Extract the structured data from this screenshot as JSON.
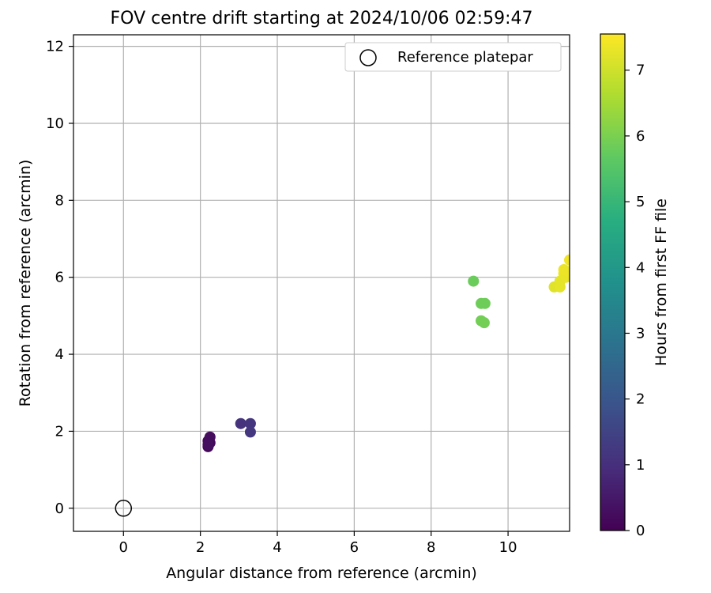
{
  "chart_data": {
    "type": "scatter",
    "title": "FOV centre drift starting at 2024/10/06 02:59:47",
    "xlabel": "Angular distance from reference (arcmin)",
    "ylabel": "Rotation from reference (arcmin)",
    "xlim": [
      -1.3,
      11.6
    ],
    "ylim": [
      -0.6,
      12.3
    ],
    "xticks": [
      0,
      2,
      4,
      6,
      8,
      10
    ],
    "yticks": [
      0,
      2,
      4,
      6,
      8,
      10,
      12
    ],
    "grid": true,
    "legend": {
      "position": "top-right",
      "entries": [
        {
          "label": "Reference platepar",
          "marker": "open-circle"
        }
      ]
    },
    "reference_point": {
      "x": 0,
      "y": 0
    },
    "colorbar": {
      "label": "Hours from first FF file",
      "colormap": "viridis",
      "range": [
        0,
        7.55
      ],
      "ticks": [
        0,
        1,
        2,
        3,
        4,
        5,
        6,
        7
      ]
    },
    "points": [
      {
        "x": 2.2,
        "y": 1.6,
        "hours": 0.1
      },
      {
        "x": 2.25,
        "y": 1.7,
        "hours": 0.15
      },
      {
        "x": 2.2,
        "y": 1.75,
        "hours": 0.2
      },
      {
        "x": 2.25,
        "y": 1.85,
        "hours": 0.25
      },
      {
        "x": 2.2,
        "y": 1.65,
        "hours": 0.3
      },
      {
        "x": 3.05,
        "y": 2.2,
        "hours": 1.1
      },
      {
        "x": 3.3,
        "y": 2.2,
        "hours": 1.15
      },
      {
        "x": 3.3,
        "y": 1.98,
        "hours": 1.2
      },
      {
        "x": 9.1,
        "y": 5.9,
        "hours": 5.8
      },
      {
        "x": 9.3,
        "y": 5.32,
        "hours": 5.85
      },
      {
        "x": 9.4,
        "y": 5.32,
        "hours": 5.85
      },
      {
        "x": 9.3,
        "y": 4.87,
        "hours": 5.9
      },
      {
        "x": 9.38,
        "y": 4.82,
        "hours": 5.9
      },
      {
        "x": 11.2,
        "y": 5.75,
        "hours": 7.2
      },
      {
        "x": 11.35,
        "y": 5.75,
        "hours": 7.25
      },
      {
        "x": 11.35,
        "y": 5.9,
        "hours": 7.25
      },
      {
        "x": 11.5,
        "y": 6.0,
        "hours": 7.3
      },
      {
        "x": 11.45,
        "y": 6.1,
        "hours": 7.3
      },
      {
        "x": 11.45,
        "y": 6.2,
        "hours": 7.35
      },
      {
        "x": 11.58,
        "y": 6.15,
        "hours": 7.35
      },
      {
        "x": 11.6,
        "y": 6.45,
        "hours": 7.4
      }
    ]
  }
}
